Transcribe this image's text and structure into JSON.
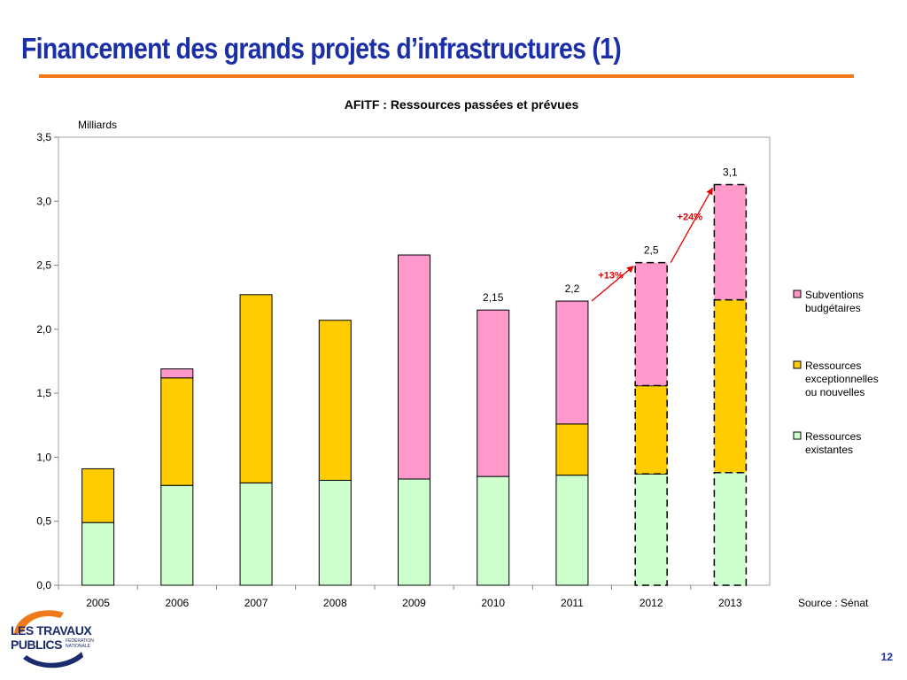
{
  "slide": {
    "title": "Financement des grands projets d’infrastructures (1)",
    "page_number": "12",
    "logo": {
      "line1": "LES TRAVAUX",
      "line2": "PUBLICS",
      "sub": "FÉDÉRATION NATIONALE"
    },
    "colors": {
      "title": "#1a2fa8",
      "rule": "#f07a1a"
    }
  },
  "chart_data": {
    "type": "bar",
    "stacked": true,
    "title": "AFITF : Ressources passées et prévues",
    "unit_label": "Milliards",
    "categories": [
      "2005",
      "2006",
      "2007",
      "2008",
      "2009",
      "2010",
      "2011",
      "2012",
      "2013"
    ],
    "series": [
      {
        "name": "Ressources existantes",
        "color": "#ccffcc",
        "values": [
          0.49,
          0.78,
          0.8,
          0.82,
          0.83,
          0.85,
          0.86,
          0.87,
          0.88
        ]
      },
      {
        "name": "Ressources exceptionnelles ou nouvelles",
        "color": "#ffcc00",
        "values": [
          0.42,
          0.84,
          1.47,
          1.25,
          0.0,
          0.0,
          0.4,
          0.69,
          1.35
        ]
      },
      {
        "name": "Subventions budgétaires",
        "color": "#ff99cc",
        "values": [
          0.0,
          0.07,
          0.0,
          0.0,
          1.75,
          1.3,
          0.96,
          0.96,
          0.9
        ]
      }
    ],
    "forecast_categories": [
      "2012",
      "2013"
    ],
    "total_labels": [
      {
        "category": "2010",
        "text": "2,15"
      },
      {
        "category": "2011",
        "text": "2,2"
      },
      {
        "category": "2012",
        "text": "2,5"
      },
      {
        "category": "2013",
        "text": "3,1"
      }
    ],
    "growth_annotations": [
      {
        "from": "2011",
        "to": "2012",
        "text": "+13%",
        "color": "#e00000"
      },
      {
        "from": "2012",
        "to": "2013",
        "text": "+24%",
        "color": "#e00000"
      }
    ],
    "ylim": [
      0,
      3.5
    ],
    "y_ticks": [
      "0,0",
      "0,5",
      "1,0",
      "1,5",
      "2,0",
      "2,5",
      "3,0",
      "3,5"
    ],
    "legend_position": "right",
    "source": "Source : Sénat"
  }
}
